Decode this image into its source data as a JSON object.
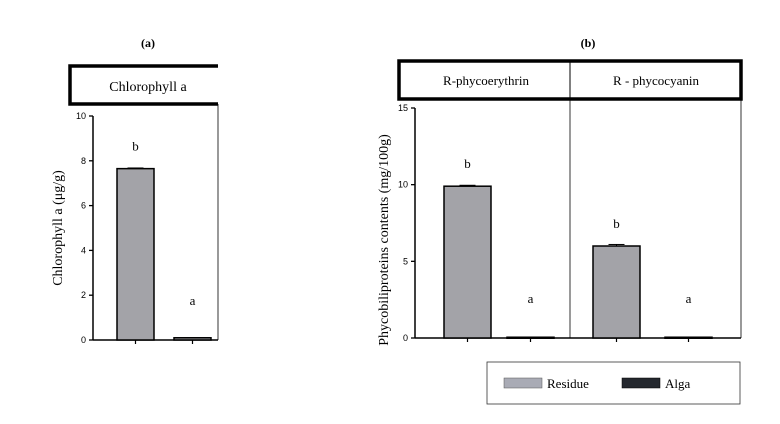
{
  "chart_data": [
    {
      "type": "bar",
      "panel_label": "(a)",
      "header": "Chlorophyll a",
      "ylabel": "Chlorophyll a (μg/g)",
      "ylim": [
        0,
        10
      ],
      "yticks": [
        "0",
        "2",
        "4",
        "6",
        "8",
        "10"
      ],
      "groups": [
        {
          "name": "Chlorophyll a",
          "series": [
            {
              "name": "Residue",
              "value": 7.65,
              "error": 0.03,
              "letter": "b"
            },
            {
              "name": "Alga",
              "value": 0.1,
              "error": 0.01,
              "letter": "a"
            }
          ]
        }
      ]
    },
    {
      "type": "bar",
      "panel_label": "(b)",
      "ylabel": "Phycobiliproteins contents (mg/100g)",
      "ylim": [
        0,
        15
      ],
      "yticks": [
        "0",
        "5",
        "10",
        "15"
      ],
      "groups": [
        {
          "name": "R-phycoerythrin",
          "series": [
            {
              "name": "Residue",
              "value": 9.9,
              "error": 0.06,
              "letter": "b"
            },
            {
              "name": "Alga",
              "value": 0.05,
              "error": 0.01,
              "letter": "a"
            }
          ]
        },
        {
          "name": "R - phycocyanin",
          "series": [
            {
              "name": "Residue",
              "value": 6.0,
              "error": 0.1,
              "letter": "b"
            },
            {
              "name": "Alga",
              "value": 0.05,
              "error": 0.01,
              "letter": "a"
            }
          ]
        }
      ]
    }
  ],
  "legend": {
    "placement": "bottom-right",
    "items": [
      {
        "name": "Residue",
        "color": "#a9abb5"
      },
      {
        "name": "Alga",
        "color": "#24282e"
      }
    ]
  },
  "colors": {
    "bar": "#a3a3a8",
    "frame": "#000000"
  }
}
